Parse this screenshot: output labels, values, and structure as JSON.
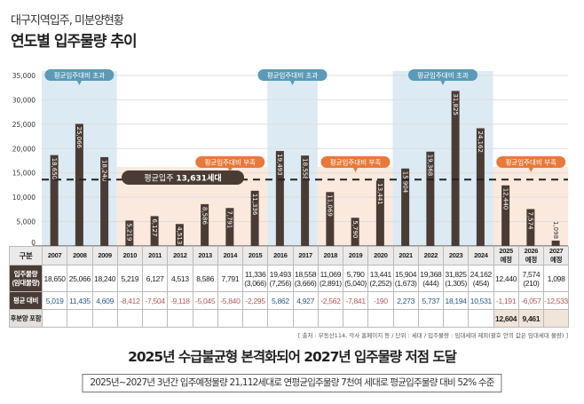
{
  "header": {
    "subtitle": "대구지역입주, 미분양현황",
    "title": "연도별 입주물량 추이"
  },
  "chart_data": {
    "type": "bar",
    "categories": [
      "2007",
      "2008",
      "2009",
      "2010",
      "2011",
      "2012",
      "2013",
      "2014",
      "2015",
      "2016",
      "2017",
      "2018",
      "2019",
      "2020",
      "2021",
      "2022",
      "2023",
      "2024",
      "2025",
      "2026",
      "2027"
    ],
    "values": [
      18650,
      25066,
      18240,
      5219,
      6127,
      4513,
      8586,
      7791,
      11336,
      19493,
      18558,
      11069,
      5790,
      13441,
      15904,
      19368,
      31825,
      24162,
      12440,
      7574,
      1098
    ],
    "bar_labels": [
      "18,650",
      "25,066",
      "18,240",
      "5,219",
      "6,127",
      "4,513",
      "8,586",
      "7,791",
      "11,336",
      "19,493",
      "18,558",
      "11,069",
      "5,790",
      "13,441",
      "15,904",
      "19,368",
      "31,825",
      "24,162",
      "12,440",
      "7,574",
      "1,098"
    ],
    "ylim": [
      0,
      35000
    ],
    "yticks": [
      "0",
      "5,000",
      "10,000",
      "15,000",
      "20,000",
      "25,000",
      "30,000",
      "35,000"
    ],
    "grid": true,
    "average": {
      "value": 13631,
      "label_prefix": "평균입주 ",
      "label_value": "13,631세대"
    },
    "regions": [
      {
        "from": "2007",
        "to": "2009",
        "type": "over",
        "label": "평균입주대비 초과"
      },
      {
        "from": "2010",
        "to": "2015",
        "type": "under",
        "label": "평균입주대비 부족"
      },
      {
        "from": "2016",
        "to": "2017",
        "type": "over",
        "label": "평균입주대비 초과"
      },
      {
        "from": "2018",
        "to": "2020",
        "type": "under",
        "label": "평균입주대비 부족"
      },
      {
        "from": "2021",
        "to": "2024",
        "type": "over",
        "label": "평균입주대비 초과"
      },
      {
        "from": "2025",
        "to": "2027",
        "type": "under",
        "label": "평균입주대비 부족"
      }
    ],
    "colors": {
      "bar": "#4a3c35",
      "over": "#dcebf3",
      "over_pill": "#5b9ab8",
      "under": "#fbe9dd",
      "under_pill": "#e8793a",
      "avg_pill": "#4a3c35"
    }
  },
  "table": {
    "header_label": "구분",
    "years": [
      "2007",
      "2008",
      "2009",
      "2010",
      "2011",
      "2012",
      "2013",
      "2014",
      "2015",
      "2016",
      "2017",
      "2018",
      "2019",
      "2020",
      "2021",
      "2022",
      "2023",
      "2024",
      "2025\n예정",
      "2026\n예정",
      "2027\n예정"
    ],
    "row1_label": "입주물량\n(임대물량)",
    "row1": [
      "18,650",
      "25,066",
      "18,240",
      "5,219",
      "6,127",
      "4,513",
      "8,586",
      "7,791",
      "11,336\n(3,066)",
      "19,493\n(7,256)",
      "18,558\n(3,666)",
      "11,069\n(2,891)",
      "5,790\n(5,040)",
      "13,441\n(2,252)",
      "15,904\n(1,673)",
      "19,368\n(444)",
      "31,825\n(1,305)",
      "24,162\n(454)",
      "12,440",
      "7,574\n(210)",
      "1,098"
    ],
    "row2_label": "평균 대비",
    "row2": [
      "5,019",
      "11,435",
      "4,609",
      "-8,412",
      "-7,504",
      "-9,118",
      "-5,045",
      "-5,840",
      "-2,295",
      "5,862",
      "4,927",
      "-2,562",
      "-7,841",
      "-190",
      "2,273",
      "5,737",
      "18,194",
      "10,531",
      "-1,191",
      "-6,057",
      "-12,533"
    ],
    "row3_label": "후분양 포함",
    "row3": [
      "",
      "",
      "",
      "",
      "",
      "",
      "",
      "",
      "",
      "",
      "",
      "",
      "",
      "",
      "",
      "",
      "",
      "",
      "12,604",
      "9,461",
      ""
    ]
  },
  "source": "[ 출처 : 부동산114, 각사 홈페이지 등 / 단위 : 세대 / 입주물량 : 임대세대 제외(괄호 안의 값은 임대세대 물량) ]",
  "headline": "2025년 수급불균형 본격화되어 2027년 입주물량 저점 도달",
  "summary": "2025년~2027년 3년간 입주예정물량 21,112세대로 연평균입주물량 7천여 세대로 평균입주물량 대비 52% 수준"
}
